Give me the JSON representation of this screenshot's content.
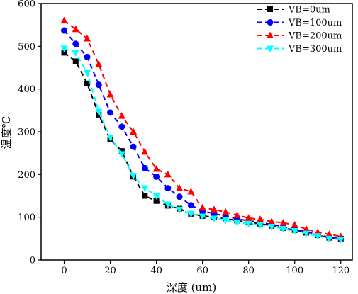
{
  "chart_data": {
    "type": "line",
    "title": "",
    "xlabel": "深度 (um)",
    "ylabel": "温度℃",
    "xlim": [
      -10,
      125
    ],
    "ylim": [
      0,
      600
    ],
    "xticks": [
      0,
      20,
      40,
      60,
      80,
      100,
      120
    ],
    "yticks": [
      0,
      100,
      200,
      300,
      400,
      500,
      600
    ],
    "grid": false,
    "legend_position": "top-right",
    "x": [
      0,
      5,
      10,
      15,
      20,
      25,
      30,
      35,
      40,
      45,
      50,
      55,
      60,
      65,
      70,
      75,
      80,
      85,
      90,
      95,
      100,
      105,
      110,
      115,
      120
    ],
    "series": [
      {
        "name": "VB=0um",
        "color": "#000000",
        "marker": "square",
        "values": [
          485,
          465,
          413,
          340,
          282,
          255,
          195,
          150,
          138,
          127,
          120,
          108,
          103,
          100,
          97,
          92,
          88,
          85,
          80,
          75,
          70,
          64,
          58,
          52,
          50
        ]
      },
      {
        "name": "VB=100um",
        "color": "#0000ff",
        "marker": "circle",
        "values": [
          537,
          506,
          475,
          410,
          345,
          312,
          265,
          215,
          195,
          168,
          148,
          128,
          115,
          108,
          103,
          96,
          92,
          88,
          83,
          78,
          72,
          66,
          60,
          53,
          50
        ]
      },
      {
        "name": "VB=200um",
        "color": "#ff0000",
        "marker": "triangle-up",
        "values": [
          560,
          540,
          518,
          458,
          387,
          337,
          300,
          253,
          213,
          200,
          168,
          160,
          122,
          118,
          112,
          105,
          98,
          95,
          90,
          87,
          82,
          72,
          65,
          60,
          55
        ]
      },
      {
        "name": "VB=300um",
        "color": "#00ffff",
        "marker": "triangle-down",
        "values": [
          495,
          485,
          438,
          347,
          287,
          248,
          197,
          168,
          150,
          130,
          118,
          108,
          102,
          97,
          93,
          88,
          85,
          82,
          78,
          73,
          68,
          62,
          56,
          50,
          48
        ]
      }
    ]
  }
}
